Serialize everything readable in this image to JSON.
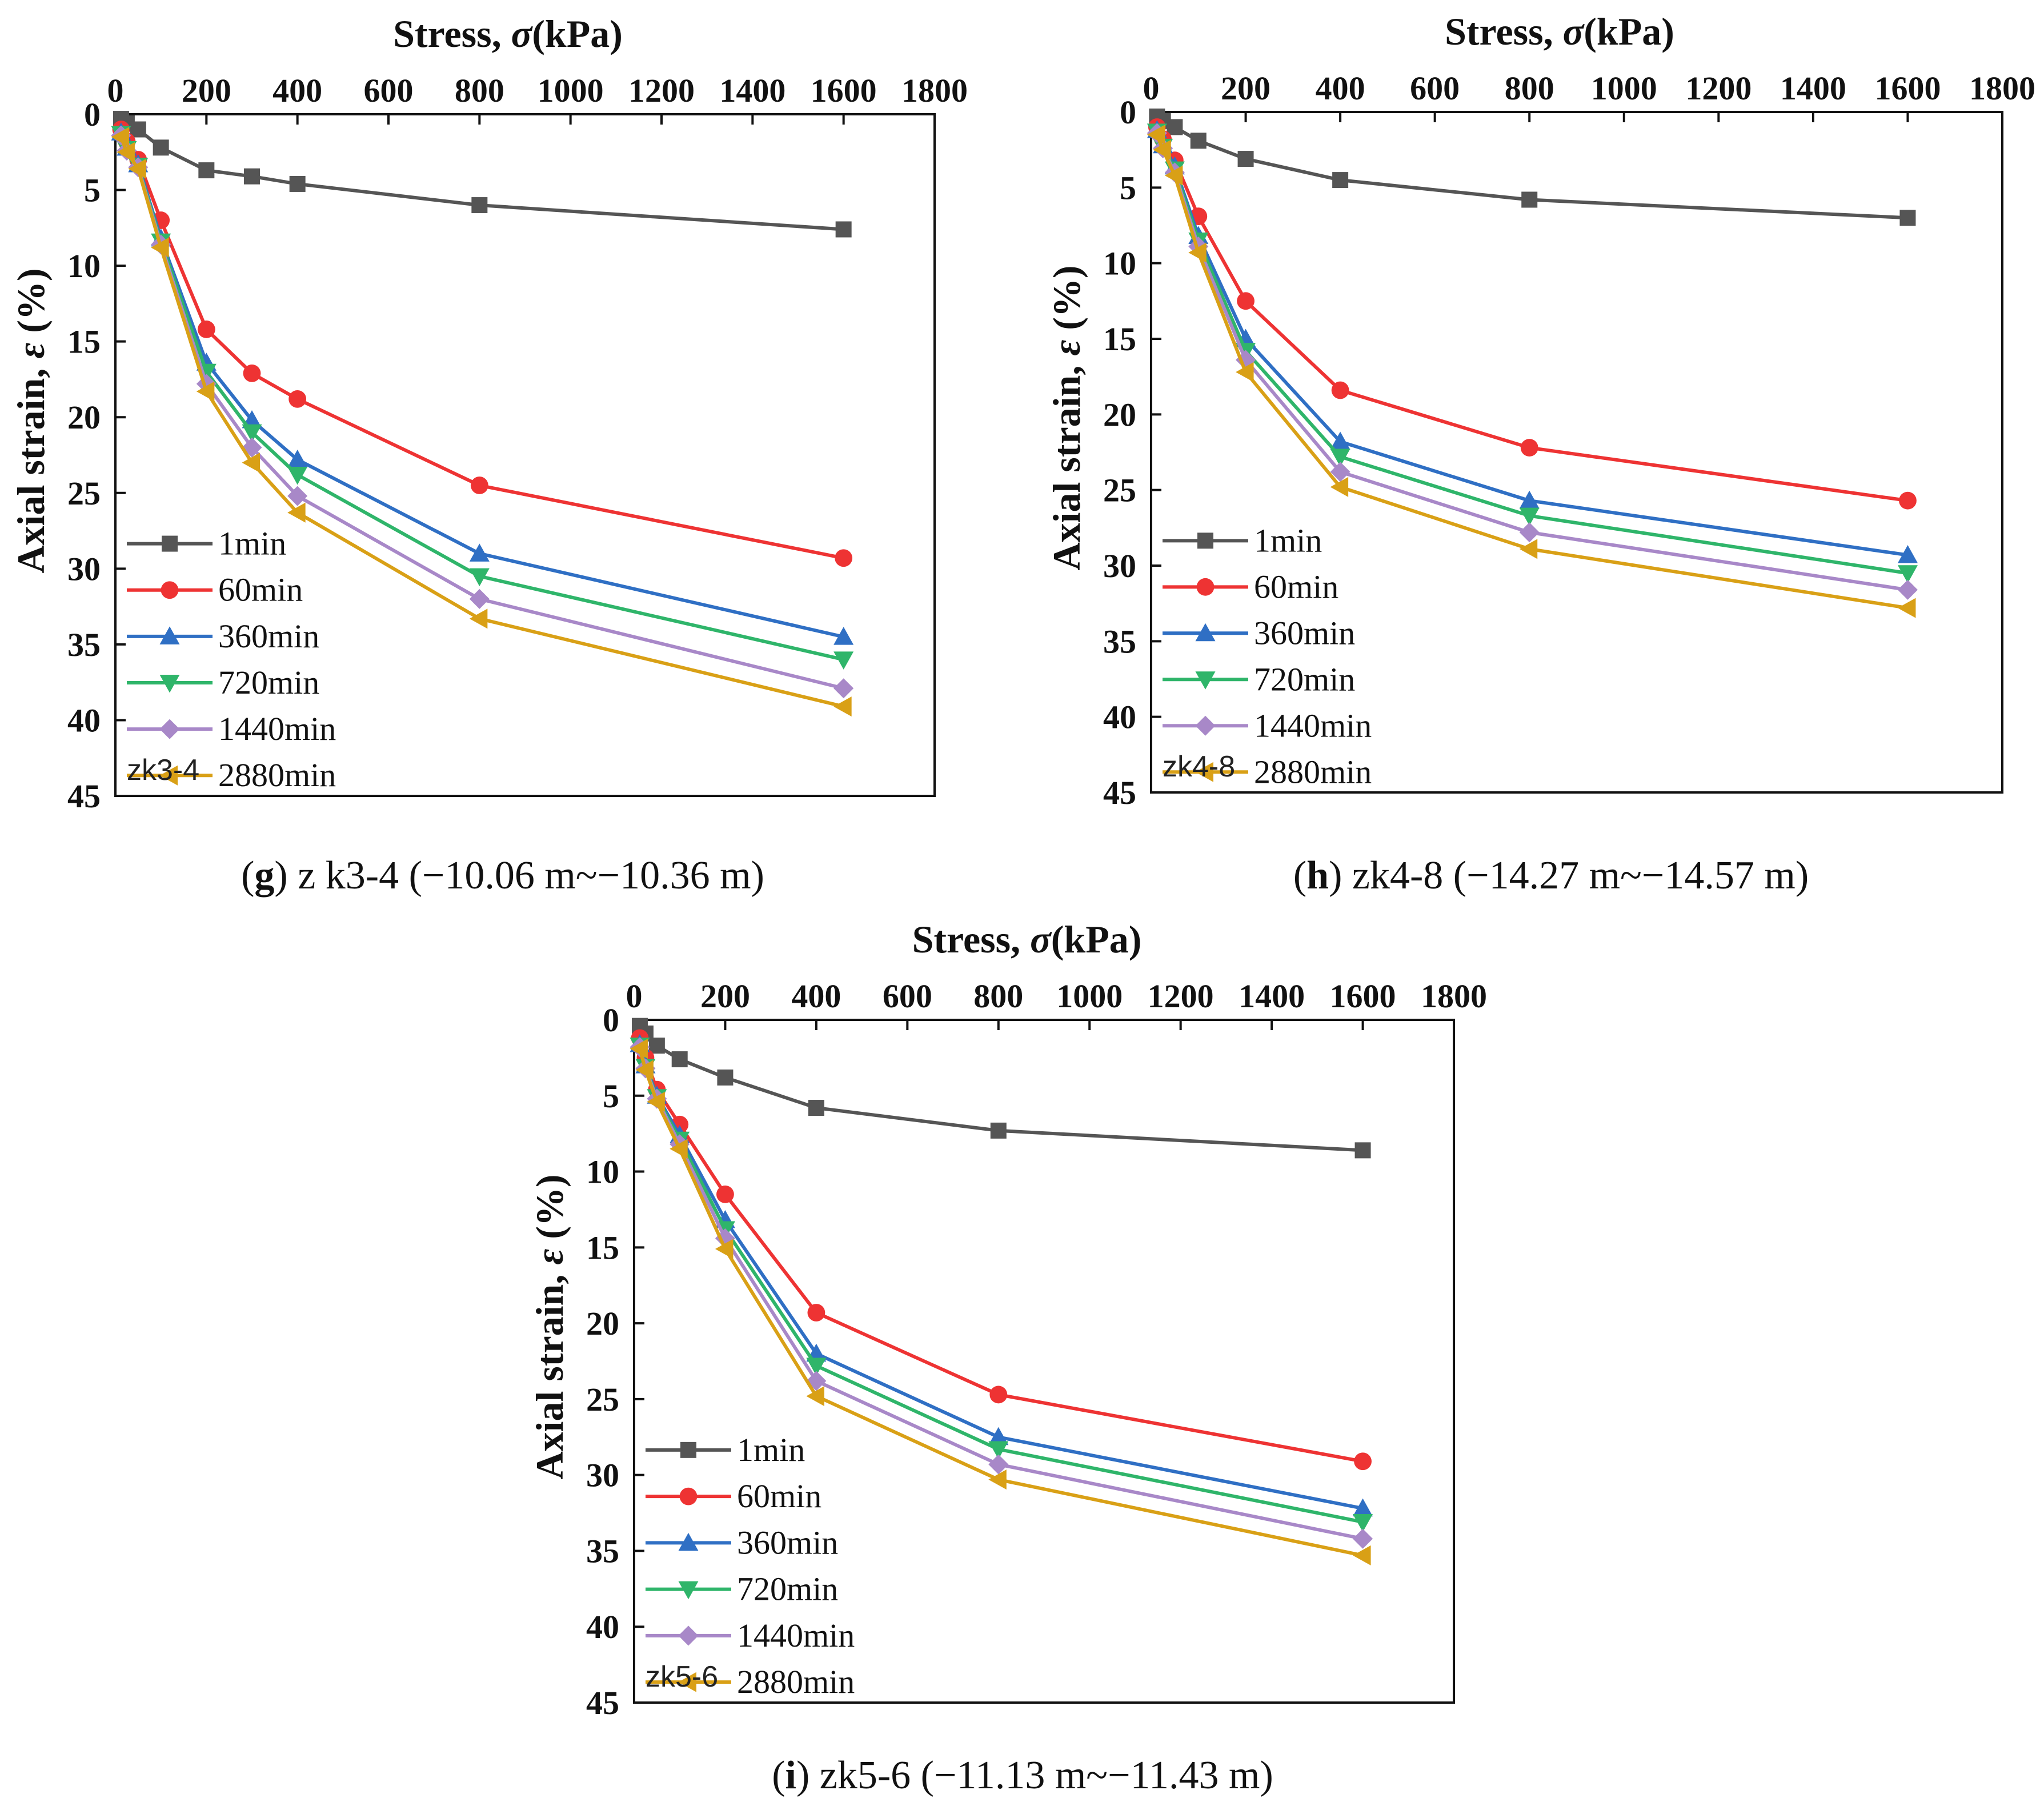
{
  "chart_data": [
    {
      "type": "line",
      "panel_tag": "zk3-4",
      "caption_letter": "g",
      "caption_text": "z k3-4 (−10.06 m~−10.36 m)",
      "xlabel_prefix": "Stress, ",
      "xlabel_symbol": "σ",
      "xlabel_unit": "(kPa)",
      "ylabel_prefix": "Axial strain, ",
      "ylabel_symbol": "ε",
      "ylabel_unit": " (%)",
      "xlim": [
        0,
        1800
      ],
      "ylim": [
        0,
        45
      ],
      "xticks": [
        0,
        200,
        400,
        600,
        800,
        1000,
        1200,
        1400,
        1600,
        1800
      ],
      "yticks": [
        0,
        5,
        10,
        15,
        20,
        25,
        30,
        35,
        40,
        45
      ],
      "x_axis_position": "top",
      "y_axis_inverted": true,
      "legend_position": "lower-left",
      "x": [
        12.5,
        25,
        50,
        100,
        200,
        300,
        400,
        800,
        1600
      ],
      "series": [
        {
          "name": "1min",
          "values": [
            0.3,
            0.6,
            1.0,
            2.2,
            3.7,
            4.1,
            4.6,
            6.0,
            7.6
          ]
        },
        {
          "name": "60min",
          "values": [
            1.0,
            1.8,
            3.0,
            7.0,
            14.2,
            17.1,
            18.8,
            24.5,
            29.3
          ]
        },
        {
          "name": "360min",
          "values": [
            1.2,
            2.2,
            3.3,
            8.2,
            16.4,
            20.2,
            22.8,
            29.0,
            34.5
          ]
        },
        {
          "name": "720min",
          "values": [
            1.3,
            2.3,
            3.4,
            8.4,
            17.0,
            21.0,
            23.8,
            30.5,
            36.0
          ]
        },
        {
          "name": "1440min",
          "values": [
            1.4,
            2.4,
            3.5,
            8.6,
            17.8,
            22.0,
            25.2,
            32.0,
            37.9
          ]
        },
        {
          "name": "2880min",
          "values": [
            1.5,
            2.5,
            3.6,
            8.8,
            18.3,
            23.0,
            26.3,
            33.3,
            39.1
          ]
        }
      ]
    },
    {
      "type": "line",
      "panel_tag": "zk4-8",
      "caption_letter": "h",
      "caption_text": "zk4-8 (−14.27 m~−14.57 m)",
      "xlabel_prefix": "Stress, ",
      "xlabel_symbol": "σ",
      "xlabel_unit": "(kPa)",
      "ylabel_prefix": "Axial strain, ",
      "ylabel_symbol": "ε",
      "ylabel_unit": " (%)",
      "xlim": [
        0,
        1800
      ],
      "ylim": [
        0,
        45
      ],
      "xticks": [
        0,
        200,
        400,
        600,
        800,
        1000,
        1200,
        1400,
        1600,
        1800
      ],
      "yticks": [
        0,
        5,
        10,
        15,
        20,
        25,
        30,
        35,
        40,
        45
      ],
      "x_axis_position": "top",
      "y_axis_inverted": true,
      "legend_position": "lower-left",
      "x": [
        12.5,
        25,
        50,
        100,
        200,
        400,
        800,
        1600
      ],
      "series": [
        {
          "name": "1min",
          "values": [
            0.3,
            0.6,
            1.0,
            1.9,
            3.1,
            4.5,
            5.8,
            7.0
          ]
        },
        {
          "name": "60min",
          "values": [
            1.0,
            1.8,
            3.2,
            6.9,
            12.5,
            18.4,
            22.2,
            25.7
          ]
        },
        {
          "name": "360min",
          "values": [
            1.2,
            2.2,
            3.6,
            8.2,
            15.0,
            21.8,
            25.7,
            29.3
          ]
        },
        {
          "name": "720min",
          "values": [
            1.3,
            2.3,
            3.8,
            8.5,
            15.8,
            22.8,
            26.7,
            30.5
          ]
        },
        {
          "name": "1440min",
          "values": [
            1.4,
            2.4,
            4.0,
            8.9,
            16.4,
            23.8,
            27.8,
            31.6
          ]
        },
        {
          "name": "2880min",
          "values": [
            1.5,
            2.5,
            4.2,
            9.3,
            17.2,
            24.8,
            28.9,
            32.8
          ]
        }
      ]
    },
    {
      "type": "line",
      "panel_tag": "zk5-6",
      "caption_letter": "i",
      "caption_text": "zk5-6 (−11.13 m~−11.43 m)",
      "xlabel_prefix": "Stress, ",
      "xlabel_symbol": "σ",
      "xlabel_unit": "(kPa)",
      "ylabel_prefix": "Axial strain, ",
      "ylabel_symbol": "ε",
      "ylabel_unit": " (%)",
      "xlim": [
        0,
        1800
      ],
      "ylim": [
        0,
        45
      ],
      "xticks": [
        0,
        200,
        400,
        600,
        800,
        1000,
        1200,
        1400,
        1600,
        1800
      ],
      "yticks": [
        0,
        5,
        10,
        15,
        20,
        25,
        30,
        35,
        40,
        45
      ],
      "x_axis_position": "top",
      "y_axis_inverted": true,
      "legend_position": "lower-left",
      "x": [
        12.5,
        25,
        50,
        100,
        200,
        400,
        800,
        1600
      ],
      "series": [
        {
          "name": "1min",
          "values": [
            0.4,
            0.9,
            1.7,
            2.6,
            3.8,
            5.8,
            7.3,
            8.6
          ]
        },
        {
          "name": "60min",
          "values": [
            1.2,
            2.5,
            4.6,
            6.9,
            11.5,
            19.3,
            24.7,
            29.1
          ]
        },
        {
          "name": "360min",
          "values": [
            1.6,
            3.0,
            5.0,
            7.6,
            13.2,
            22.0,
            27.5,
            32.2
          ]
        },
        {
          "name": "720min",
          "values": [
            1.7,
            3.1,
            5.1,
            7.9,
            13.8,
            22.8,
            28.3,
            33.1
          ]
        },
        {
          "name": "1440min",
          "values": [
            1.8,
            3.2,
            5.2,
            8.2,
            14.4,
            23.8,
            29.3,
            34.2
          ]
        },
        {
          "name": "2880min",
          "values": [
            1.9,
            3.3,
            5.4,
            8.5,
            15.1,
            24.8,
            30.3,
            35.3
          ]
        }
      ]
    }
  ],
  "series_styles": [
    {
      "color": "#555555",
      "marker": "square"
    },
    {
      "color": "#ee3333",
      "marker": "circle"
    },
    {
      "color": "#2f6fc4",
      "marker": "triangle-up"
    },
    {
      "color": "#2fb56a",
      "marker": "triangle-down"
    },
    {
      "color": "#a888c8",
      "marker": "diamond"
    },
    {
      "color": "#d9a016",
      "marker": "triangle-left"
    }
  ]
}
